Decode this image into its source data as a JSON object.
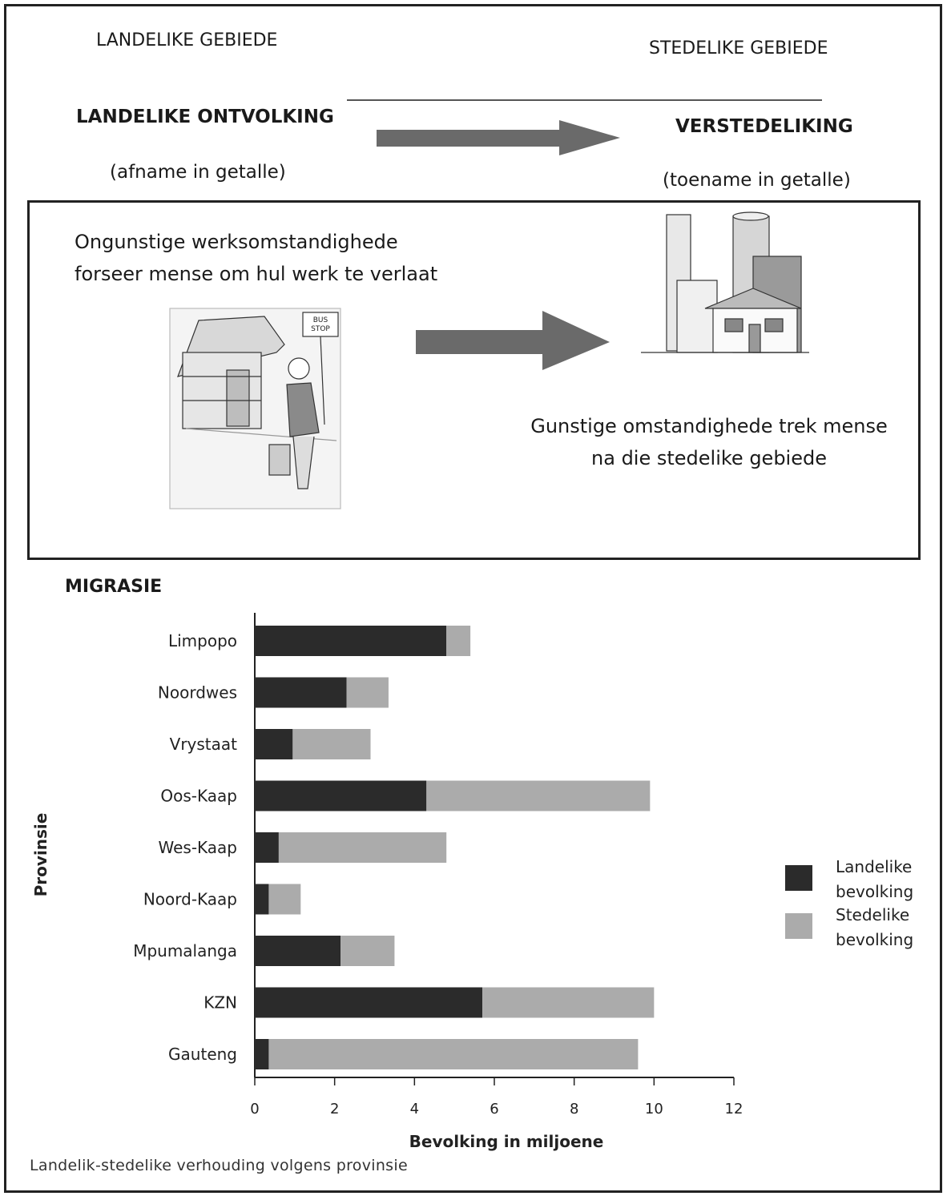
{
  "header": {
    "left_area": "LANDELIKE GEBIEDE",
    "right_area": "STEDELIKE GEBIEDE",
    "left_process": "LANDELIKE ONTVOLKING",
    "right_process": "VERSTEDELIKING",
    "left_note": "(afname in getalle)",
    "right_note": "(toename in getalle)"
  },
  "illustration": {
    "push_text": "Ongunstige werksomstandighede forseer mense om hul werk te verlaat",
    "pull_text": "Gunstige omstandighede trek mense na die stedelike gebiede",
    "sign_text": "BUS STOP"
  },
  "section_title": "MIGRASIE",
  "caption": "Landelik-stedelike verhouding volgens provinsie",
  "colors": {
    "rural": "#2b2b2b",
    "urban": "#ababab",
    "arrow": "#6a6a6a"
  },
  "chart_data": {
    "type": "bar",
    "orientation": "horizontal",
    "stacked": true,
    "xlabel": "Bevolking in miljoene",
    "ylabel": "Provinsie",
    "xlim": [
      0,
      12
    ],
    "xticks": [
      0,
      2,
      4,
      6,
      8,
      10,
      12
    ],
    "categories": [
      "Limpopo",
      "Noordwes",
      "Vrystaat",
      "Oos-Kaap",
      "Wes-Kaap",
      "Noord-Kaap",
      "Mpumalanga",
      "KZN",
      "Gauteng"
    ],
    "series": [
      {
        "name": "Landelike bevolking",
        "values": [
          4.8,
          2.3,
          0.95,
          4.3,
          0.6,
          0.35,
          2.15,
          5.7,
          0.35
        ]
      },
      {
        "name": "Stedelike bevolking",
        "values": [
          0.6,
          1.05,
          1.95,
          5.6,
          4.2,
          0.8,
          1.35,
          4.3,
          9.25
        ]
      }
    ],
    "legend": [
      "Landelike bevolking",
      "Stedelike bevolking"
    ],
    "legend_position": "right",
    "grid": false
  }
}
